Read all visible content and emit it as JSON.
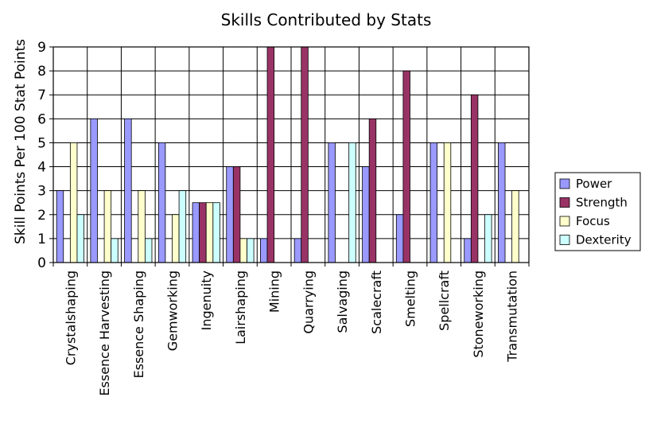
{
  "chart_data": {
    "type": "bar",
    "title": "Skills Contributed by Stats",
    "xlabel": "",
    "ylabel": "Skill Points Per 100 Stat Points",
    "ylim": [
      0,
      9
    ],
    "yticks": [
      "0",
      "1",
      "2",
      "3",
      "4",
      "5",
      "6",
      "7",
      "8",
      "9"
    ],
    "grid": true,
    "legend_position": "right",
    "categories": [
      "Crystalshaping",
      "Essence Harvesting",
      "Essence Shaping",
      "Gemworking",
      "Ingenuity",
      "Lairshaping",
      "Mining",
      "Quarrying",
      "Salvaging",
      "Scalecraft",
      "Smelting",
      "Spellcraft",
      "Stoneworking",
      "Transmutation"
    ],
    "series": [
      {
        "name": "Power",
        "color": "#9999ff",
        "values": [
          3,
          6,
          6,
          5,
          2.5,
          4,
          1,
          1,
          5,
          4,
          2,
          5,
          1,
          5
        ]
      },
      {
        "name": "Strength",
        "color": "#993366",
        "values": [
          0,
          0,
          0,
          0,
          2.5,
          4,
          9,
          9,
          0,
          6,
          8,
          0,
          7,
          0
        ]
      },
      {
        "name": "Focus",
        "color": "#ffffcc",
        "values": [
          5,
          3,
          3,
          2,
          2.5,
          1,
          0,
          0,
          0,
          0,
          0,
          5,
          0,
          3
        ]
      },
      {
        "name": "Dexterity",
        "color": "#ccffff",
        "values": [
          2,
          1,
          1,
          3,
          2.5,
          1,
          0,
          0,
          5,
          0,
          0,
          0,
          2,
          0
        ]
      }
    ]
  }
}
